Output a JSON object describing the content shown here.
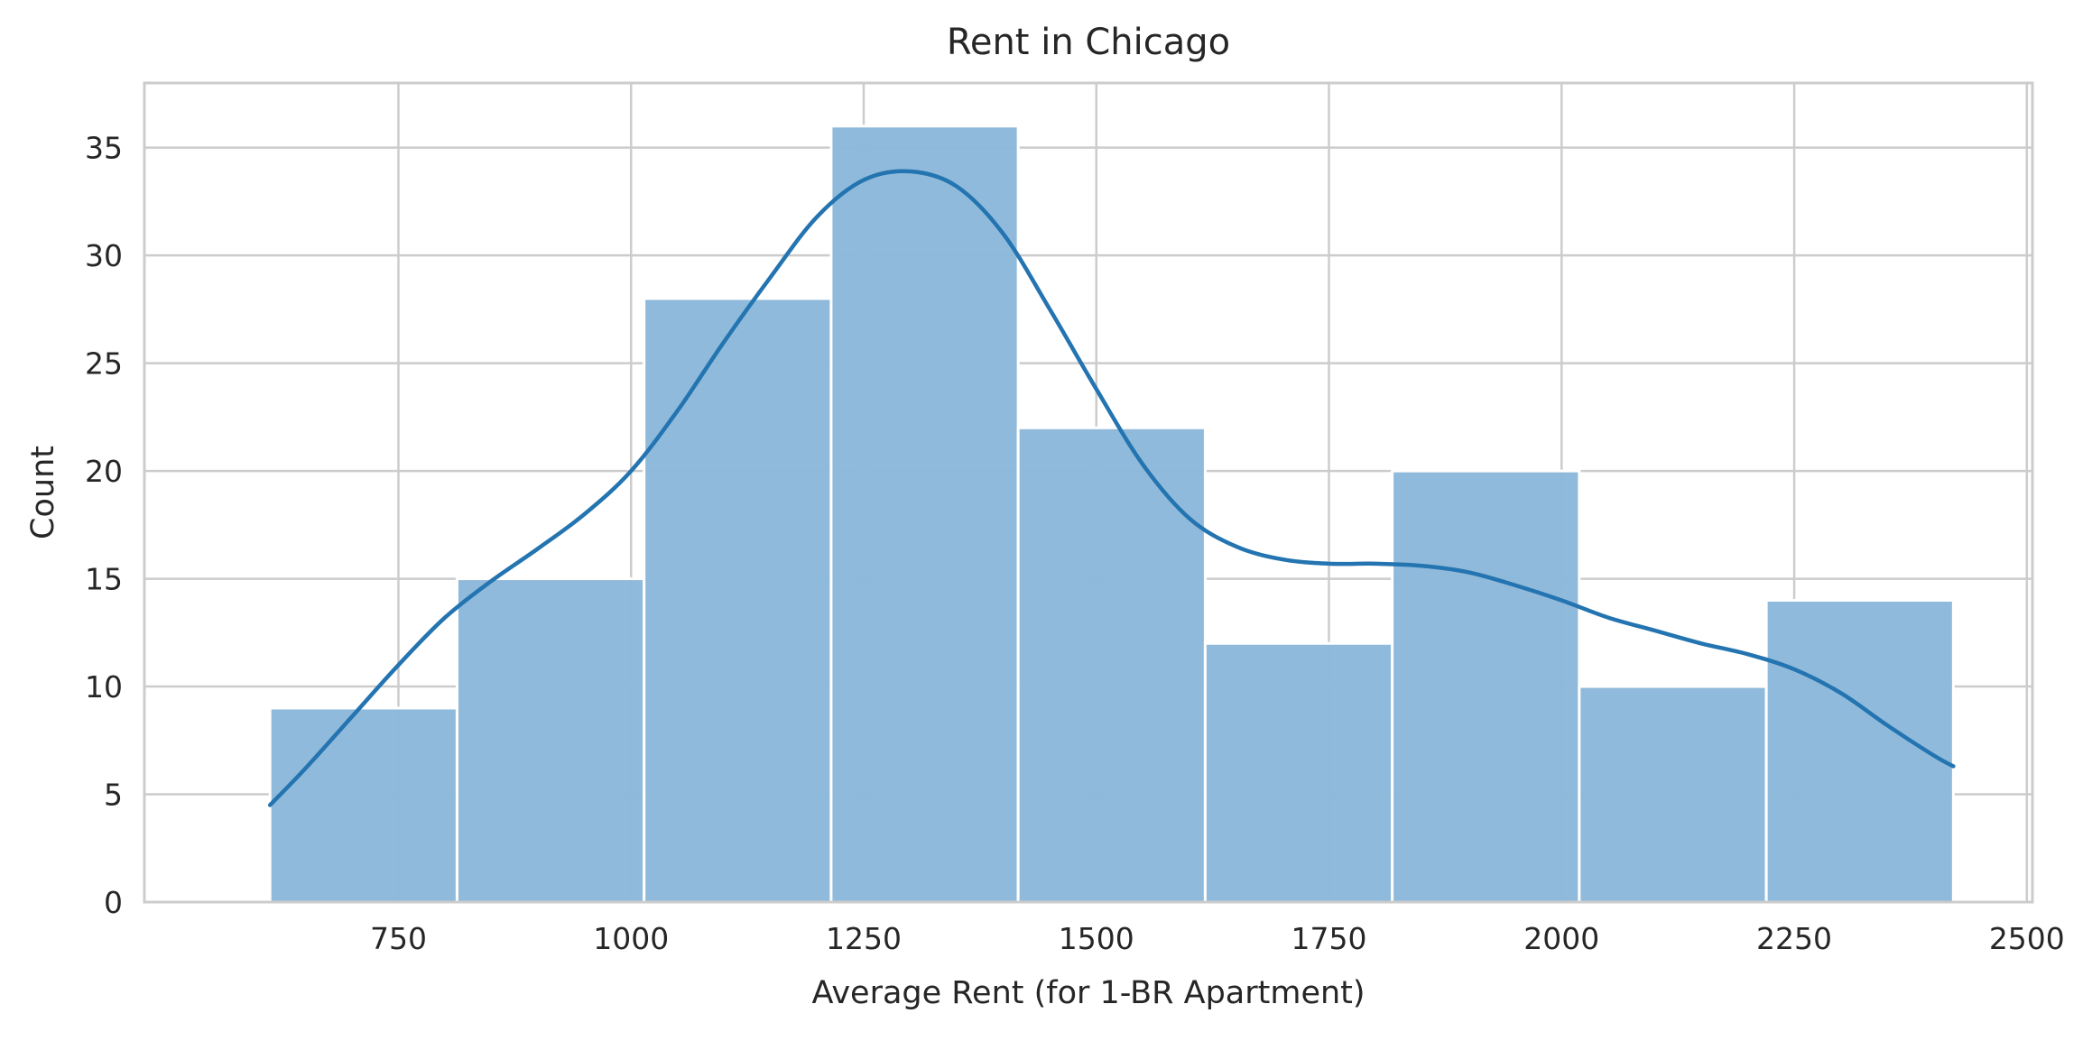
{
  "chart_data": {
    "type": "bar",
    "title": "Rent in Chicago",
    "xlabel": "Average Rent (for 1-BR Apartment)",
    "ylabel": "Count",
    "xlim": [
      477,
      2506
    ],
    "ylim": [
      0,
      38
    ],
    "grid": true,
    "xticks": [
      750,
      1000,
      1250,
      1500,
      1750,
      2000,
      2250,
      2500
    ],
    "yticks": [
      0,
      5,
      10,
      15,
      20,
      25,
      30,
      35
    ],
    "bins": [
      {
        "x0": 612,
        "x1": 813,
        "count": 9
      },
      {
        "x0": 813,
        "x1": 1014,
        "count": 15
      },
      {
        "x0": 1014,
        "x1": 1215,
        "count": 28
      },
      {
        "x0": 1215,
        "x1": 1416,
        "count": 36
      },
      {
        "x0": 1416,
        "x1": 1617,
        "count": 22
      },
      {
        "x0": 1617,
        "x1": 1818,
        "count": 12
      },
      {
        "x0": 1818,
        "x1": 2019,
        "count": 20
      },
      {
        "x0": 2019,
        "x1": 2220,
        "count": 10
      },
      {
        "x0": 2220,
        "x1": 2421,
        "count": 14
      }
    ],
    "kde": {
      "x": [
        612,
        650,
        700,
        750,
        800,
        850,
        900,
        950,
        1000,
        1050,
        1100,
        1150,
        1200,
        1250,
        1300,
        1350,
        1400,
        1450,
        1500,
        1550,
        1600,
        1650,
        1700,
        1750,
        1800,
        1850,
        1900,
        1950,
        2000,
        2050,
        2100,
        2150,
        2200,
        2250,
        2300,
        2350,
        2400,
        2421
      ],
      "y": [
        4.5,
        6.2,
        8.6,
        11.0,
        13.2,
        14.9,
        16.4,
        18.0,
        20.0,
        22.8,
        26.0,
        29.0,
        31.8,
        33.5,
        33.9,
        33.2,
        31.0,
        27.5,
        23.8,
        20.3,
        17.8,
        16.5,
        15.9,
        15.7,
        15.7,
        15.6,
        15.3,
        14.7,
        14.0,
        13.2,
        12.6,
        12.0,
        11.5,
        10.8,
        9.7,
        8.2,
        6.8,
        6.3
      ]
    },
    "colors": {
      "bar_fill": "#8db9da",
      "bar_edge": "#ffffff",
      "kde_line": "#2374b0",
      "grid": "#cccccc",
      "axes_edge": "#cccccc",
      "text": "#262626"
    }
  }
}
